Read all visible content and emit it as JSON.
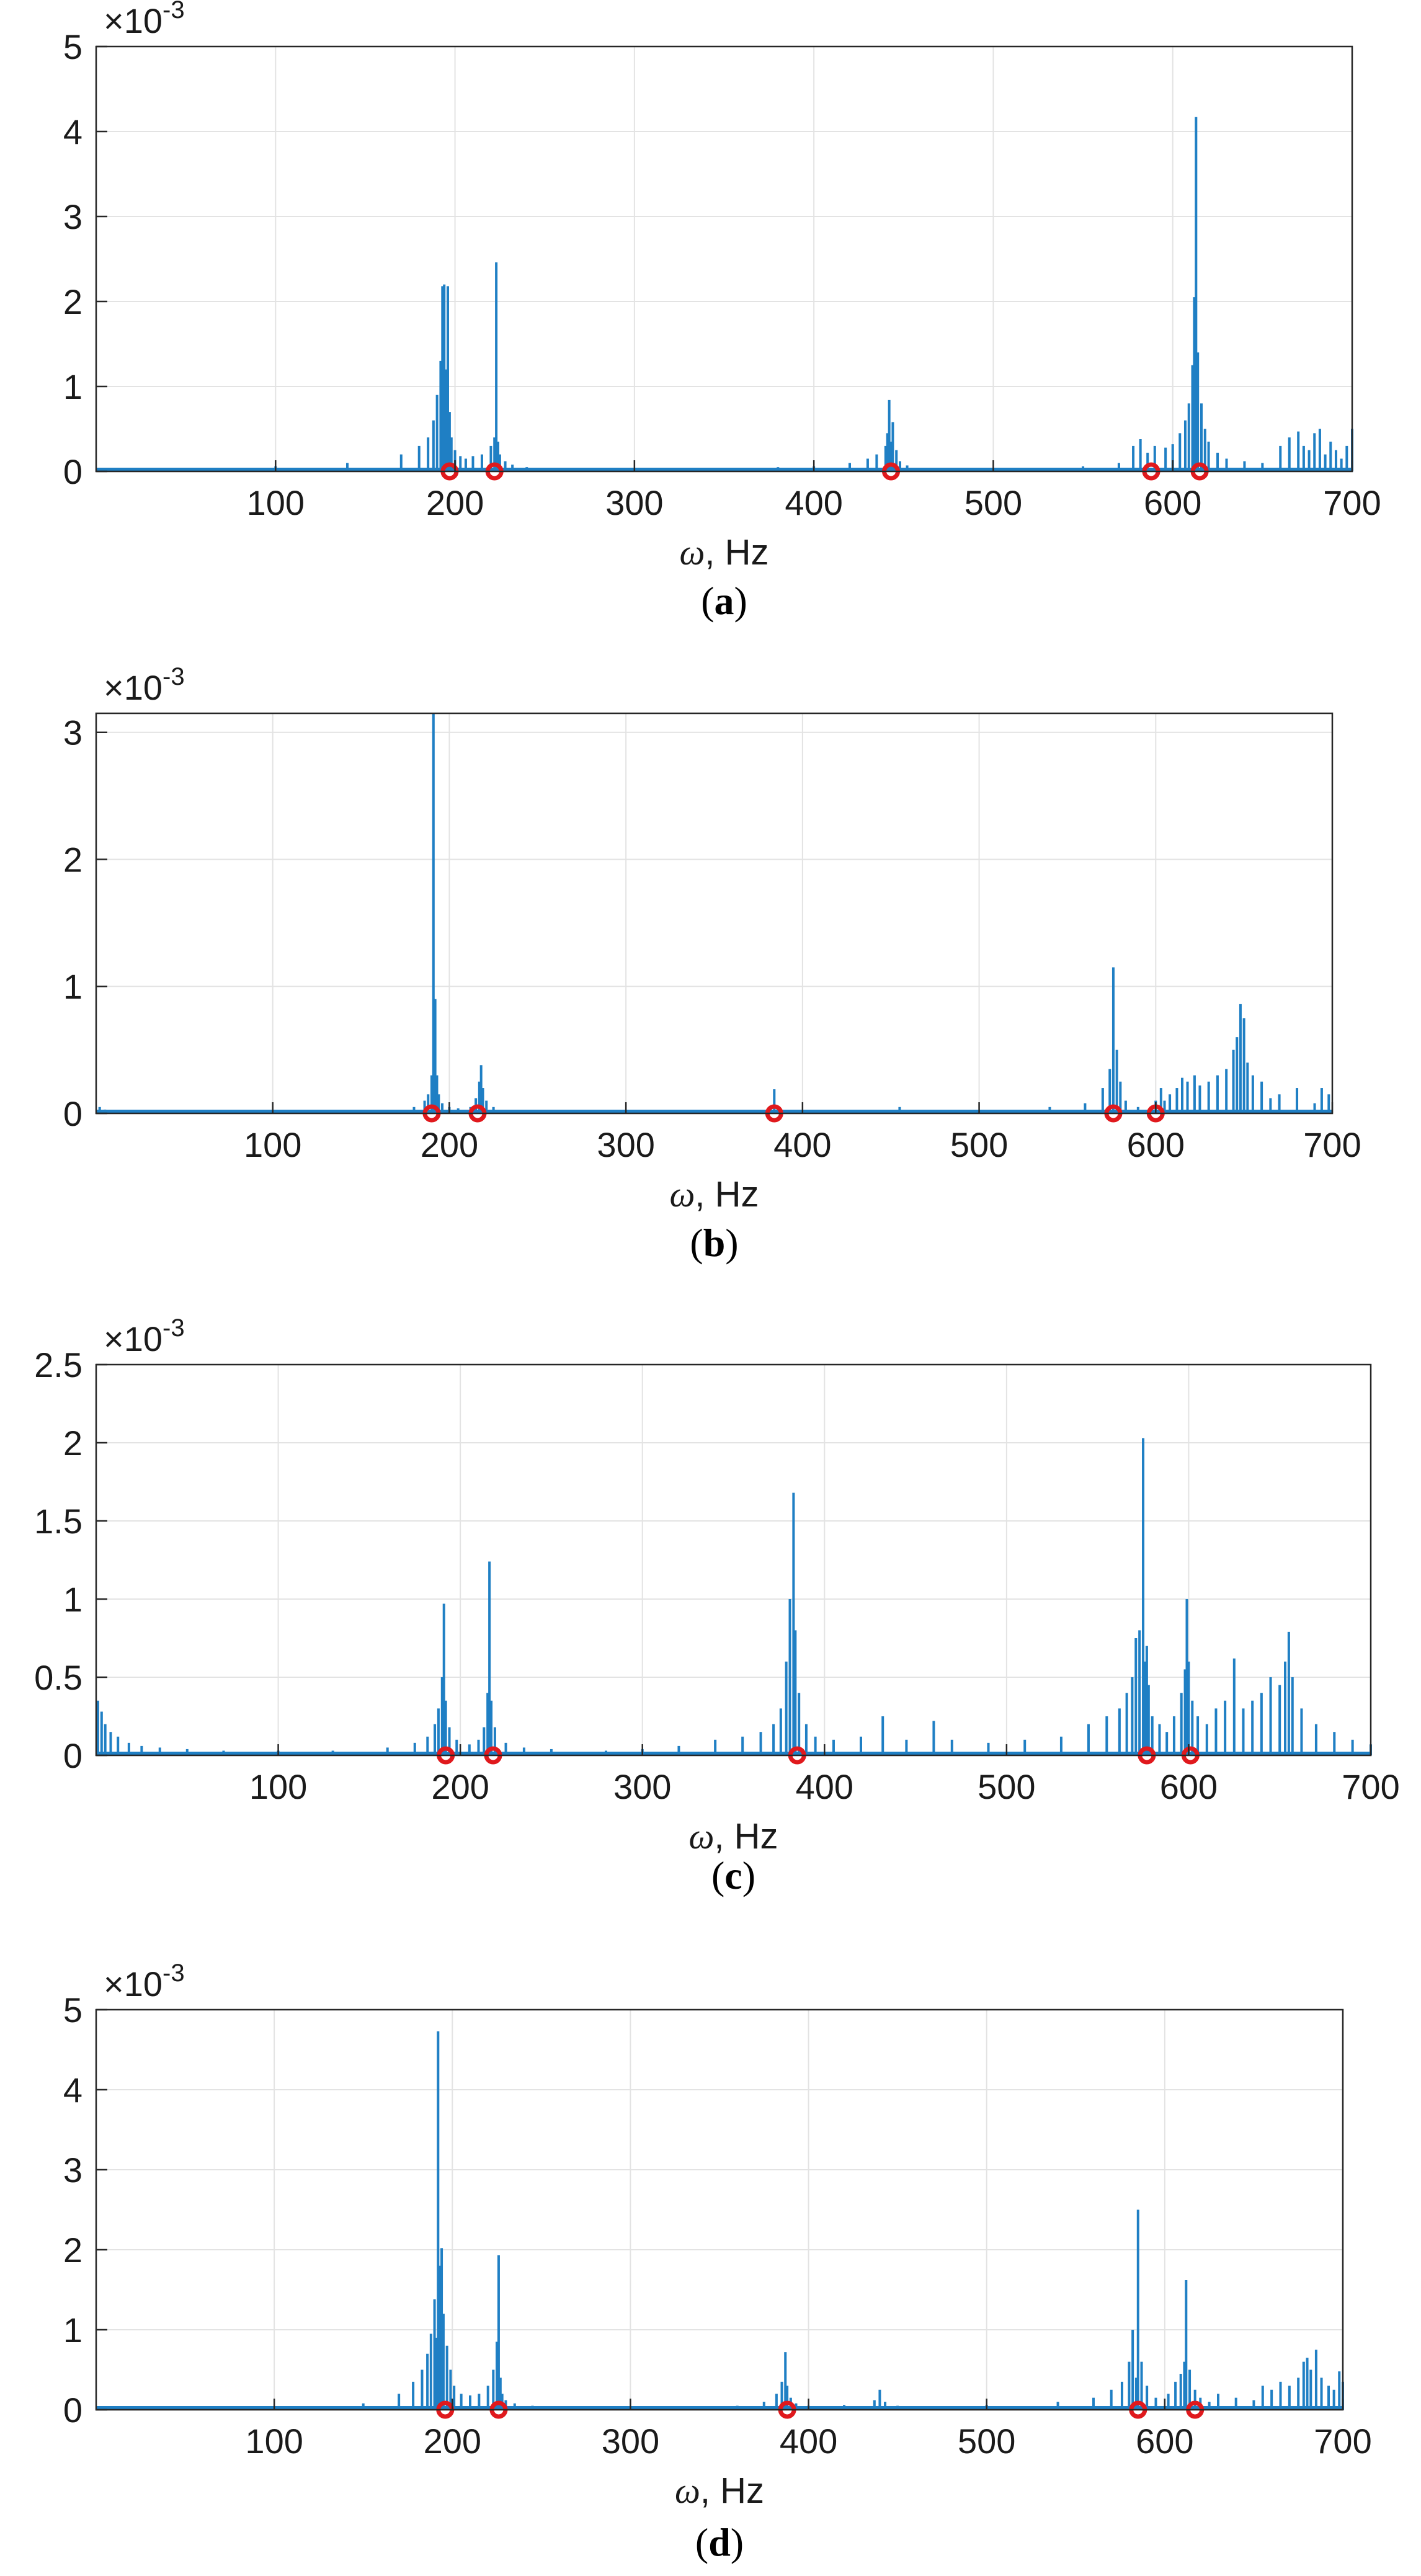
{
  "chart_data": [
    {
      "id": "a",
      "type": "bar",
      "panel_label": "a",
      "xlabel_symbol": "ω",
      "xlabel_unit": ", Hz",
      "ylabel": "",
      "y_multiplier_base": "×10",
      "y_multiplier_exp": "-3",
      "xlim": [
        0,
        700
      ],
      "ylim": [
        0,
        5
      ],
      "xticks": [
        100,
        200,
        300,
        400,
        500,
        600,
        700
      ],
      "xtick_labels": [
        "100",
        "200",
        "300",
        "400",
        "500",
        "600",
        "700"
      ],
      "yticks": [
        0,
        1,
        2,
        3,
        4,
        5
      ],
      "ytick_labels": [
        "0",
        "1",
        "2",
        "3",
        "4",
        "5"
      ],
      "grid": true,
      "series": [
        {
          "name": "spectrum",
          "color": "#1f7fc4",
          "x": [
            5,
            15,
            30,
            60,
            100,
            140,
            170,
            180,
            185,
            188,
            190,
            192,
            193,
            194,
            195,
            196,
            197,
            198,
            200,
            203,
            206,
            210,
            215,
            220,
            222,
            223,
            224,
            225,
            228,
            232,
            240,
            260,
            300,
            350,
            380,
            400,
            420,
            430,
            435,
            440,
            441,
            442,
            443,
            444,
            446,
            448,
            452,
            460,
            480,
            520,
            550,
            570,
            578,
            582,
            586,
            590,
            596,
            600,
            604,
            607,
            609,
            611,
            612,
            613,
            614,
            616,
            618,
            620,
            625,
            630,
            640,
            650,
            660,
            665,
            670,
            673,
            676,
            679,
            682,
            685,
            688,
            691,
            694,
            697,
            700
          ],
          "values": [
            0.04,
            0.03,
            0.03,
            0.04,
            0.06,
            0.1,
            0.2,
            0.3,
            0.4,
            0.6,
            0.9,
            1.3,
            2.18,
            2.2,
            1.2,
            2.18,
            0.7,
            0.4,
            0.25,
            0.18,
            0.15,
            0.18,
            0.2,
            0.3,
            0.4,
            2.46,
            0.35,
            0.2,
            0.12,
            0.08,
            0.05,
            0.03,
            0.02,
            0.03,
            0.05,
            0.06,
            0.1,
            0.15,
            0.2,
            0.3,
            0.45,
            0.84,
            0.35,
            0.58,
            0.25,
            0.12,
            0.07,
            0.04,
            0.03,
            0.03,
            0.06,
            0.1,
            0.3,
            0.38,
            0.22,
            0.3,
            0.28,
            0.32,
            0.45,
            0.6,
            0.8,
            1.25,
            2.05,
            4.17,
            1.4,
            0.8,
            0.5,
            0.35,
            0.22,
            0.15,
            0.12,
            0.1,
            0.3,
            0.4,
            0.47,
            0.3,
            0.25,
            0.45,
            0.5,
            0.2,
            0.35,
            0.25,
            0.15,
            0.3,
            0.5
          ]
        }
      ],
      "markers": {
        "name": "natural frequencies",
        "color": "#e0191d",
        "x": [
          197,
          222,
          443,
          588,
          615
        ],
        "y": [
          0,
          0,
          0,
          0,
          0
        ]
      }
    },
    {
      "id": "b",
      "type": "bar",
      "panel_label": "b",
      "xlabel_symbol": "ω",
      "xlabel_unit": ", Hz",
      "ylabel": "",
      "y_multiplier_base": "×10",
      "y_multiplier_exp": "-3",
      "xlim": [
        0,
        700
      ],
      "ylim": [
        0,
        3.15
      ],
      "xticks": [
        100,
        200,
        300,
        400,
        500,
        600,
        700
      ],
      "xtick_labels": [
        "100",
        "200",
        "300",
        "400",
        "500",
        "600",
        "700"
      ],
      "yticks": [
        0,
        1,
        2,
        3
      ],
      "ytick_labels": [
        "0",
        "1",
        "2",
        "3"
      ],
      "grid": true,
      "series": [
        {
          "name": "spectrum",
          "color": "#1f7fc4",
          "x": [
            2,
            5,
            30,
            80,
            150,
            180,
            186,
            188,
            190,
            191,
            192,
            193,
            194,
            196,
            200,
            205,
            212,
            215,
            217,
            218,
            219,
            221,
            225,
            240,
            280,
            350,
            380,
            384,
            386,
            388,
            400,
            440,
            455,
            500,
            540,
            560,
            570,
            574,
            576,
            578,
            580,
            583,
            590,
            600,
            603,
            605,
            608,
            612,
            615,
            618,
            622,
            625,
            630,
            635,
            640,
            644,
            646,
            648,
            650,
            652,
            655,
            660,
            665,
            670,
            680,
            690,
            694,
            698
          ],
          "values": [
            0.05,
            0.03,
            0.01,
            0.01,
            0.02,
            0.05,
            0.1,
            0.15,
            0.3,
            3.15,
            0.9,
            0.3,
            0.15,
            0.08,
            0.05,
            0.04,
            0.05,
            0.12,
            0.25,
            0.38,
            0.2,
            0.1,
            0.05,
            0.02,
            0.01,
            0.01,
            0.03,
            0.19,
            0.05,
            0.02,
            0.01,
            0.02,
            0.05,
            0.02,
            0.05,
            0.08,
            0.2,
            0.35,
            1.15,
            0.5,
            0.25,
            0.1,
            0.05,
            0.1,
            0.2,
            0.1,
            0.15,
            0.2,
            0.28,
            0.25,
            0.3,
            0.22,
            0.25,
            0.3,
            0.35,
            0.5,
            0.6,
            0.86,
            0.75,
            0.4,
            0.3,
            0.25,
            0.12,
            0.15,
            0.2,
            0.08,
            0.2,
            0.15
          ]
        }
      ],
      "markers": {
        "name": "natural frequencies",
        "color": "#e0191d",
        "x": [
          190,
          216,
          384,
          576,
          600
        ],
        "y": [
          0,
          0,
          0,
          0,
          0
        ]
      }
    },
    {
      "id": "c",
      "type": "bar",
      "panel_label": "c",
      "xlabel_symbol": "ω",
      "xlabel_unit": ", Hz",
      "ylabel": "",
      "y_multiplier_base": "×10",
      "y_multiplier_exp": "-3",
      "xlim": [
        0,
        700
      ],
      "ylim": [
        0,
        2.5
      ],
      "xticks": [
        100,
        200,
        300,
        400,
        500,
        600,
        700
      ],
      "xtick_labels": [
        "100",
        "200",
        "300",
        "400",
        "500",
        "600",
        "700"
      ],
      "yticks": [
        0,
        0.5,
        1,
        1.5,
        2,
        2.5
      ],
      "ytick_labels": [
        "0",
        "0.5",
        "1",
        "1.5",
        "2",
        "2.5"
      ],
      "grid": true,
      "series": [
        {
          "name": "spectrum",
          "color": "#1f7fc4",
          "x": [
            1,
            3,
            5,
            8,
            12,
            18,
            25,
            35,
            50,
            70,
            100,
            130,
            160,
            175,
            182,
            186,
            188,
            190,
            191,
            192,
            194,
            198,
            205,
            210,
            213,
            215,
            216,
            217,
            219,
            225,
            235,
            250,
            280,
            300,
            320,
            340,
            355,
            365,
            372,
            376,
            379,
            381,
            383,
            384,
            386,
            390,
            395,
            405,
            420,
            432,
            445,
            460,
            470,
            490,
            510,
            530,
            545,
            555,
            562,
            566,
            569,
            571,
            573,
            575,
            576,
            577,
            578,
            580,
            584,
            588,
            592,
            596,
            598,
            599,
            600,
            602,
            605,
            610,
            615,
            620,
            625,
            630,
            635,
            640,
            645,
            650,
            653,
            655,
            657,
            662,
            670,
            680,
            690,
            700
          ],
          "values": [
            0.35,
            0.28,
            0.2,
            0.15,
            0.12,
            0.08,
            0.06,
            0.05,
            0.04,
            0.03,
            0.03,
            0.03,
            0.05,
            0.08,
            0.12,
            0.2,
            0.3,
            0.5,
            0.97,
            0.35,
            0.18,
            0.1,
            0.07,
            0.1,
            0.18,
            0.4,
            1.24,
            0.35,
            0.18,
            0.08,
            0.05,
            0.04,
            0.03,
            0.04,
            0.06,
            0.1,
            0.12,
            0.15,
            0.2,
            0.3,
            0.6,
            1.0,
            1.68,
            0.8,
            0.4,
            0.2,
            0.12,
            0.1,
            0.12,
            0.25,
            0.1,
            0.22,
            0.1,
            0.08,
            0.1,
            0.12,
            0.2,
            0.25,
            0.3,
            0.4,
            0.5,
            0.75,
            0.8,
            2.03,
            0.6,
            0.7,
            0.45,
            0.25,
            0.2,
            0.15,
            0.25,
            0.4,
            0.55,
            1.0,
            0.6,
            0.35,
            0.25,
            0.2,
            0.3,
            0.35,
            0.62,
            0.3,
            0.35,
            0.4,
            0.5,
            0.45,
            0.6,
            0.79,
            0.5,
            0.3,
            0.2,
            0.15,
            0.1,
            0.07
          ]
        }
      ],
      "markers": {
        "name": "natural frequencies",
        "color": "#e0191d",
        "x": [
          192,
          218,
          385,
          577,
          601
        ],
        "y": [
          0,
          0,
          0,
          0,
          0
        ]
      }
    },
    {
      "id": "d",
      "type": "bar",
      "panel_label": "d",
      "xlabel_symbol": "ω",
      "xlabel_unit": ", Hz",
      "ylabel": "",
      "y_multiplier_base": "×10",
      "y_multiplier_exp": "-3",
      "xlim": [
        0,
        700
      ],
      "ylim": [
        0,
        5
      ],
      "xticks": [
        100,
        200,
        300,
        400,
        500,
        600,
        700
      ],
      "xtick_labels": [
        "100",
        "200",
        "300",
        "400",
        "500",
        "600",
        "700"
      ],
      "yticks": [
        0,
        1,
        2,
        3,
        4,
        5
      ],
      "ytick_labels": [
        "0",
        "1",
        "2",
        "3",
        "4",
        "5"
      ],
      "grid": true,
      "series": [
        {
          "name": "spectrum",
          "color": "#1f7fc4",
          "x": [
            2,
            20,
            50,
            80,
            120,
            150,
            170,
            178,
            183,
            186,
            188,
            190,
            191,
            192,
            193,
            194,
            195,
            197,
            199,
            201,
            205,
            210,
            215,
            220,
            223,
            225,
            226,
            227,
            228,
            230,
            235,
            245,
            270,
            320,
            360,
            375,
            382,
            385,
            387,
            388,
            390,
            393,
            400,
            420,
            437,
            440,
            443,
            450,
            470,
            500,
            540,
            560,
            570,
            576,
            580,
            582,
            584,
            585,
            587,
            590,
            595,
            602,
            606,
            609,
            611,
            612,
            614,
            617,
            620,
            625,
            630,
            640,
            650,
            655,
            660,
            665,
            670,
            675,
            678,
            680,
            682,
            685,
            688,
            692,
            695,
            698,
            700
          ],
          "values": [
            0.04,
            0.03,
            0.03,
            0.02,
            0.04,
            0.08,
            0.2,
            0.35,
            0.5,
            0.7,
            0.95,
            1.38,
            0.9,
            4.73,
            1.8,
            2.02,
            1.2,
            0.8,
            0.5,
            0.3,
            0.2,
            0.18,
            0.2,
            0.3,
            0.5,
            0.85,
            1.93,
            0.4,
            0.2,
            0.12,
            0.08,
            0.05,
            0.04,
            0.03,
            0.05,
            0.1,
            0.2,
            0.35,
            0.72,
            0.3,
            0.15,
            0.08,
            0.05,
            0.06,
            0.12,
            0.25,
            0.1,
            0.05,
            0.04,
            0.06,
            0.1,
            0.15,
            0.25,
            0.35,
            0.6,
            1.0,
            0.4,
            2.5,
            0.6,
            0.3,
            0.15,
            0.2,
            0.35,
            0.45,
            0.6,
            1.62,
            0.5,
            0.25,
            0.15,
            0.1,
            0.2,
            0.15,
            0.12,
            0.3,
            0.25,
            0.35,
            0.3,
            0.4,
            0.6,
            0.65,
            0.5,
            0.75,
            0.4,
            0.3,
            0.25,
            0.48,
            0.35
          ]
        }
      ],
      "markers": {
        "name": "natural frequencies",
        "color": "#e0191d",
        "x": [
          196,
          226,
          388,
          585,
          617
        ],
        "y": [
          0,
          0,
          0,
          0,
          0
        ]
      }
    }
  ]
}
